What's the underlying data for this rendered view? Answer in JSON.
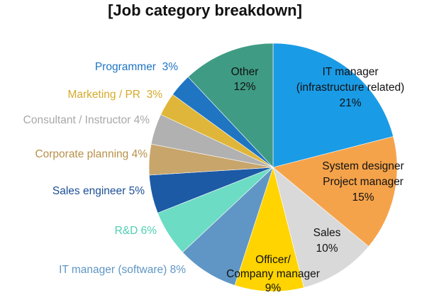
{
  "chart_data": {
    "type": "pie",
    "title": "[Job category breakdown]",
    "slices": [
      {
        "label": "IT manager (infrastructure related)",
        "label_lines": [
          "IT manager",
          "(infrastructure related)",
          "21%"
        ],
        "value": 21,
        "color": "#1a9be6",
        "label_color": "#111111",
        "label_position": "inside"
      },
      {
        "label": "System designer Project manager",
        "label_lines": [
          "System designer",
          "Project manager",
          "15%"
        ],
        "value": 15,
        "color": "#f5a34a",
        "label_color": "#111111",
        "label_position": "inside"
      },
      {
        "label": "Sales",
        "label_lines": [
          "Sales",
          "10%"
        ],
        "value": 10,
        "color": "#d9d9d9",
        "label_color": "#111111",
        "label_position": "inside"
      },
      {
        "label": "Officer/ Company manager",
        "label_lines": [
          "Officer/",
          "Company manager",
          "9%"
        ],
        "value": 9,
        "color": "#ffd400",
        "label_color": "#111111",
        "label_position": "inside"
      },
      {
        "label": "IT manager (software)",
        "label_lines": [
          "IT manager (software) 8%"
        ],
        "value": 8,
        "color": "#5f96c5",
        "label_color": "#5f96c5",
        "label_position": "outside"
      },
      {
        "label": "R&D",
        "label_lines": [
          "R&D 6%"
        ],
        "value": 6,
        "color": "#6ddcc4",
        "label_color": "#4fcfb4",
        "label_position": "outside"
      },
      {
        "label": "Sales engineer",
        "label_lines": [
          "Sales engineer 5%"
        ],
        "value": 5,
        "color": "#1c5aa6",
        "label_color": "#1c4f96",
        "label_position": "outside"
      },
      {
        "label": "Corporate planning",
        "label_lines": [
          "Corporate planning 4%"
        ],
        "value": 4,
        "color": "#c8a56b",
        "label_color": "#b8904a",
        "label_position": "outside"
      },
      {
        "label": "Consultant / Instructor",
        "label_lines": [
          "Consultant / Instructor 4%"
        ],
        "value": 4,
        "color": "#b1b1b1",
        "label_color": "#a8a8a8",
        "label_position": "outside"
      },
      {
        "label": "Marketing / PR",
        "label_lines": [
          "Marketing / PR  3%"
        ],
        "value": 3,
        "color": "#e0b63a",
        "label_color": "#d4aa2a",
        "label_position": "outside"
      },
      {
        "label": "Programmer",
        "label_lines": [
          "Programmer  3%"
        ],
        "value": 3,
        "color": "#1f75c2",
        "label_color": "#1f75c2",
        "label_position": "outside"
      },
      {
        "label": "Other",
        "label_lines": [
          "Other",
          "12%"
        ],
        "value": 12,
        "color": "#3f9b84",
        "label_color": "#111111",
        "label_position": "inside"
      }
    ],
    "start_angle": "12 o'clock",
    "direction": "clockwise",
    "legend": "none"
  }
}
